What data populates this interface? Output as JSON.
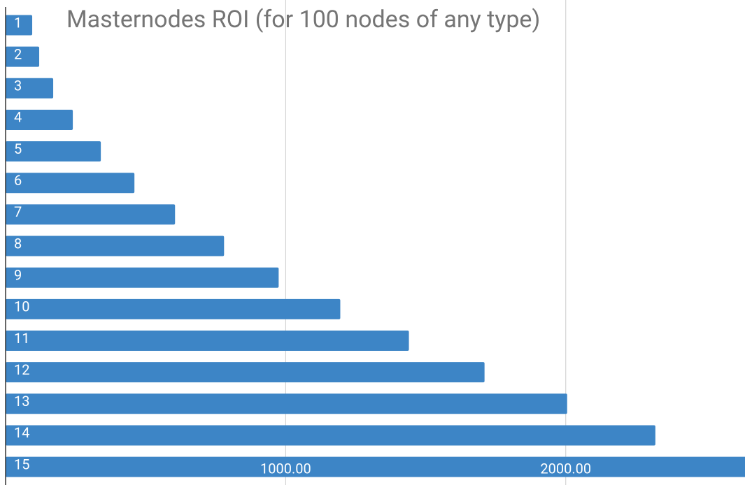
{
  "chart_data": {
    "type": "bar",
    "orientation": "horizontal",
    "title": "Masternodes ROI (for 100 nodes of any type)",
    "categories": [
      "1",
      "2",
      "3",
      "4",
      "5",
      "6",
      "7",
      "8",
      "9",
      "10",
      "11",
      "12",
      "13",
      "14",
      "15"
    ],
    "values": [
      95,
      120,
      170,
      240,
      340,
      460,
      605,
      780,
      975,
      1195,
      1440,
      1710,
      2005,
      2320,
      2700
    ],
    "color": "#3d85c6",
    "xlim": [
      0,
      2640
    ],
    "xticks": [
      {
        "value": 1000,
        "label": "1000.00"
      },
      {
        "value": 2000,
        "label": "2000.00"
      }
    ],
    "grid": true
  }
}
